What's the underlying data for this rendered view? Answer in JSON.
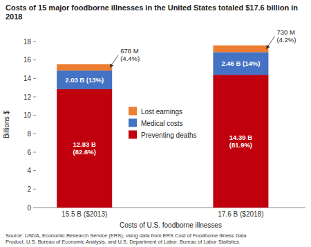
{
  "chart_data": {
    "type": "bar",
    "stacked": true,
    "title": "Costs of 15 major foodborne illnesses in the United States totaled $17.6 billion in 2018",
    "xlabel": "Costs of U.S. foodborne illnesses",
    "ylabel": "Billions $",
    "source": "Source: USDA, Economic Research Service (ERS), using data from ERS Cost of Foodborne Illness Data\nProduct, U.S. Bureau of Economic Analysis, and U.S. Department of Labor, Bureau of Labor Statistics.",
    "categories": [
      "15.5 B ($2013)",
      "17.6 B ($2018)"
    ],
    "series": [
      {
        "name": "Preventing deaths",
        "color": "#c0000c",
        "values": [
          12.83,
          14.39
        ],
        "value_labels": [
          "12.83 B\n(82.6%)",
          "14.39 B\n(81.9%)"
        ]
      },
      {
        "name": "Medical costs",
        "color": "#4472c4",
        "values": [
          2.03,
          2.46
        ],
        "value_labels": [
          "2.03 B (13%)",
          "2.46 B (14%)"
        ]
      },
      {
        "name": "Lost earnings",
        "color": "#ed7d31",
        "values": [
          0.678,
          0.73
        ],
        "value_labels": [
          "678 M\n(4.4%)",
          "730 M\n(4.2%)"
        ]
      }
    ],
    "data_labels": true,
    "legend": "center",
    "grid": false,
    "ylim": [
      0,
      18
    ],
    "yticks": [
      0,
      2,
      4,
      6,
      8,
      10,
      12,
      14,
      16,
      18
    ]
  }
}
